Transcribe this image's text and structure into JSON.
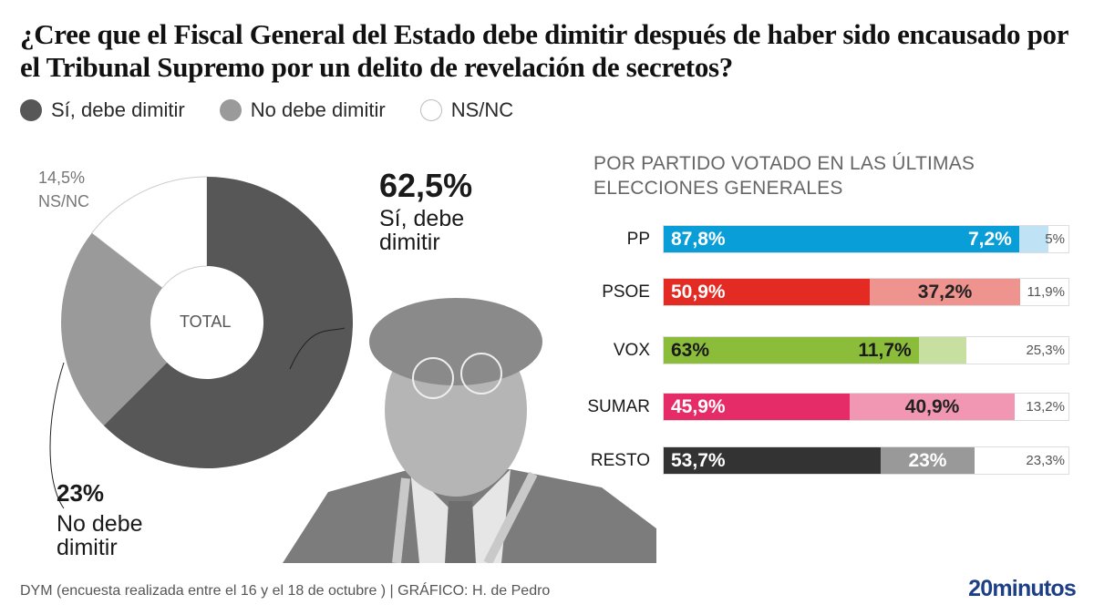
{
  "title": "¿Cree que el Fiscal General del Estado debe dimitir después de haber sido encausado por el Tribunal Supremo por un delito de revelación de secretos?",
  "legend": [
    {
      "label": "Sí, debe dimitir",
      "color": "#575757"
    },
    {
      "label": "No debe dimitir",
      "color": "#9a9a9a"
    },
    {
      "label": "NS/NC",
      "color": "#ffffff"
    }
  ],
  "chart_data": [
    {
      "type": "pie",
      "variant": "donut",
      "title": "TOTAL",
      "categories": [
        "Sí, debe dimitir",
        "No debe dimitir",
        "NS/NC"
      ],
      "values": [
        62.5,
        23,
        14.5
      ],
      "value_labels": [
        "62,5%",
        "23%",
        "14,5%"
      ],
      "colors": [
        "#575757",
        "#9a9a9a",
        "#ffffff"
      ],
      "annotations": {
        "si": {
          "value": "62,5%",
          "line1": "Sí, debe",
          "line2": "dimitir"
        },
        "no": {
          "value": "23%",
          "line1": "No debe",
          "line2": "dimitir"
        },
        "ns": {
          "value": "14,5%",
          "line1": "NS/NC"
        }
      }
    },
    {
      "type": "bar",
      "orientation": "horizontal",
      "stacked": true,
      "title": "POR PARTIDO VOTADO EN LAS ÚLTIMAS ELECCIONES GENERALES",
      "title_line1": "POR PARTIDO VOTADO EN LAS ÚLTIMAS",
      "title_line2": "ELECCIONES GENERALES",
      "categories": [
        "PP",
        "PSOE",
        "VOX",
        "SUMAR",
        "RESTO"
      ],
      "series": [
        {
          "name": "Sí, debe dimitir",
          "values": [
            87.8,
            50.9,
            63,
            45.9,
            53.7
          ],
          "labels": [
            "87,8%",
            "50,9%",
            "63%",
            "45,9%",
            "53,7%"
          ]
        },
        {
          "name": "No debe dimitir",
          "values": [
            7.2,
            37.2,
            11.7,
            40.9,
            23
          ],
          "labels": [
            "7,2%",
            "37,2%",
            "11,7%",
            "40,9%",
            "23%"
          ]
        },
        {
          "name": "NS/NC",
          "values": [
            5,
            11.9,
            25.3,
            13.2,
            23.3
          ],
          "labels": [
            "5%",
            "11,9%",
            "25,3%",
            "13,2%",
            "23,3%"
          ]
        }
      ],
      "colors": {
        "PP": [
          "#0a9ed9",
          "#bfe3f4",
          "#ffffff"
        ],
        "PSOE": [
          "#e32a23",
          "#ef938f",
          "#ffffff"
        ],
        "VOX": [
          "#8bbd3a",
          "#c7e0a2",
          "#ffffff"
        ],
        "SUMAR": [
          "#e52c68",
          "#f196b3",
          "#ffffff"
        ],
        "RESTO": [
          "#333333",
          "#999999",
          "#ffffff"
        ]
      },
      "label_colors": {
        "PP": [
          "#ffffff",
          "#ffffff",
          "#555555"
        ],
        "PSOE": [
          "#ffffff",
          "#222222",
          "#555555"
        ],
        "VOX": [
          "#1a1a1a",
          "#1a1a1a",
          "#555555"
        ],
        "SUMAR": [
          "#ffffff",
          "#222222",
          "#555555"
        ],
        "RESTO": [
          "#ffffff",
          "#ffffff",
          "#555555"
        ]
      },
      "xlim": [
        0,
        100
      ]
    }
  ],
  "footer": {
    "source": "DYM (encuesta realizada entre el 16 y el 18 de octubre )  |  GRÁFICO: H. de Pedro",
    "brand": "20minutos"
  }
}
